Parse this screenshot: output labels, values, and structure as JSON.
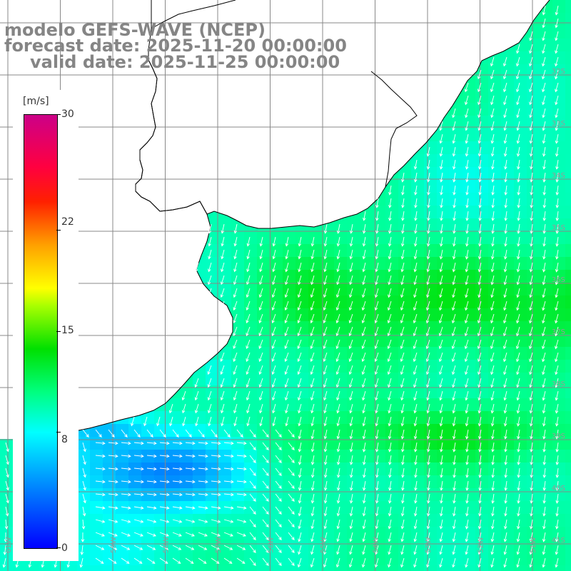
{
  "header": {
    "title": "modelo GEFS-WAVE (NCEP)",
    "forecast_date": "forecast date: 2025-11-20 00:00:00",
    "valid_date": "valid date: 2025-11-25 00:00:00"
  },
  "colorbar": {
    "unit": "[m/s]",
    "range": [
      0,
      30
    ],
    "ticks": [
      {
        "value": 30,
        "label": "30"
      },
      {
        "value": 22,
        "label": "22"
      },
      {
        "value": 15,
        "label": "15"
      },
      {
        "value": 8,
        "label": "8"
      },
      {
        "value": 0,
        "label": "0"
      }
    ],
    "colors": [
      "#0000ff",
      "#0080ff",
      "#00ffff",
      "#00ff80",
      "#00e000",
      "#aaff00",
      "#ffff00",
      "#ffa000",
      "#ff2000",
      "#ff0040",
      "#cc0088"
    ]
  },
  "map": {
    "land_color": "#ffffff",
    "grid_color": "#888888",
    "coast_color": "#000000",
    "arrow_color": "#ffffff",
    "lat_labels": [
      {
        "label": "32S",
        "lat": -32
      },
      {
        "label": "33S",
        "lat": -33
      },
      {
        "label": "34S",
        "lat": -34
      },
      {
        "label": "35S",
        "lat": -35
      },
      {
        "label": "36S",
        "lat": -36
      },
      {
        "label": "37S",
        "lat": -37
      },
      {
        "label": "38S",
        "lat": -38
      },
      {
        "label": "39S",
        "lat": -39
      },
      {
        "label": "40S",
        "lat": -40
      },
      {
        "label": "41S",
        "lat": -41
      }
    ],
    "lon_labels": [
      {
        "label": "61W",
        "lon": -61
      },
      {
        "label": "60W",
        "lon": -60
      },
      {
        "label": "59W",
        "lon": -59
      },
      {
        "label": "58W",
        "lon": -58
      },
      {
        "label": "57W",
        "lon": -57
      },
      {
        "label": "56W",
        "lon": -56
      },
      {
        "label": "55W",
        "lon": -55
      },
      {
        "label": "54W",
        "lon": -54
      },
      {
        "label": "53W",
        "lon": -53
      },
      {
        "label": "52W",
        "lon": -52
      },
      {
        "label": "51W",
        "lon": -51
      }
    ]
  }
}
